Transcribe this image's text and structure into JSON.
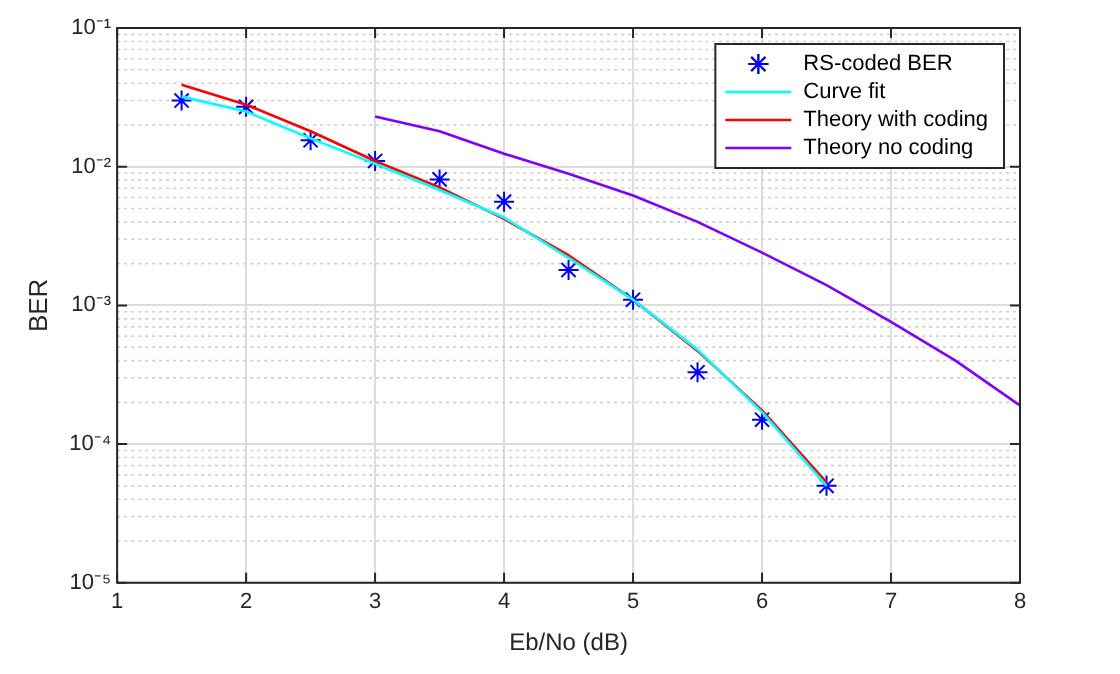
{
  "chart_data": {
    "type": "line",
    "xlabel": "Eb/No (dB)",
    "ylabel": "BER",
    "log": "y",
    "grid": true,
    "legend": "top right",
    "xlim": [
      1,
      8
    ],
    "xticks": [
      1,
      2,
      3,
      4,
      5,
      6,
      7,
      8
    ],
    "ylim": [
      1e-05,
      0.1
    ],
    "yticks": [
      {
        "value": 1e-05,
        "label": "10⁻⁵"
      },
      {
        "value": 0.0001,
        "label": "10⁻⁴"
      },
      {
        "value": 0.001,
        "label": "10⁻³"
      },
      {
        "value": 0.01,
        "label": "10⁻²"
      },
      {
        "value": 0.1,
        "label": "10⁻¹"
      }
    ],
    "series": [
      {
        "name": "RS-coded BER",
        "type": "scatter",
        "marker": "cross",
        "color": "#0000ff",
        "x": [
          1.5,
          2,
          2.5,
          3,
          3.5,
          4,
          4.5,
          5,
          5.5,
          6,
          6.5
        ],
        "values": [
          0.03,
          0.027,
          0.0155,
          0.011,
          0.0081,
          0.0056,
          0.0018,
          0.0011,
          0.00033,
          0.00015,
          5e-05
        ]
      },
      {
        "name": "Curve fit",
        "type": "line",
        "marker": "none",
        "color": "#00ffff",
        "x": [
          1.5,
          2,
          2.5,
          3,
          3.5,
          4,
          4.5,
          5,
          5.5,
          6,
          6.5
        ],
        "values": [
          0.032,
          0.025,
          0.016,
          0.0105,
          0.0068,
          0.0043,
          0.0022,
          0.0011,
          0.00048,
          0.00017,
          5e-05
        ]
      },
      {
        "name": "Theory with coding",
        "type": "line",
        "marker": "none",
        "color": "#ff0000",
        "x": [
          1.5,
          2,
          2.5,
          3,
          3.5,
          4,
          4.5,
          5,
          5.5,
          6,
          6.5
        ],
        "values": [
          0.039,
          0.028,
          0.018,
          0.011,
          0.0071,
          0.0042,
          0.0023,
          0.0011,
          0.00047,
          0.000175,
          5.3e-05
        ]
      },
      {
        "name": "Theory no coding",
        "type": "line",
        "marker": "none",
        "color": "#7e00ff",
        "x": [
          3,
          3.5,
          4,
          4.5,
          5,
          5.5,
          6,
          6.5,
          7,
          7.5,
          8
        ],
        "values": [
          0.023,
          0.018,
          0.0124,
          0.0089,
          0.0062,
          0.004,
          0.0024,
          0.0014,
          0.00076,
          0.0004,
          0.00019
        ]
      }
    ]
  }
}
